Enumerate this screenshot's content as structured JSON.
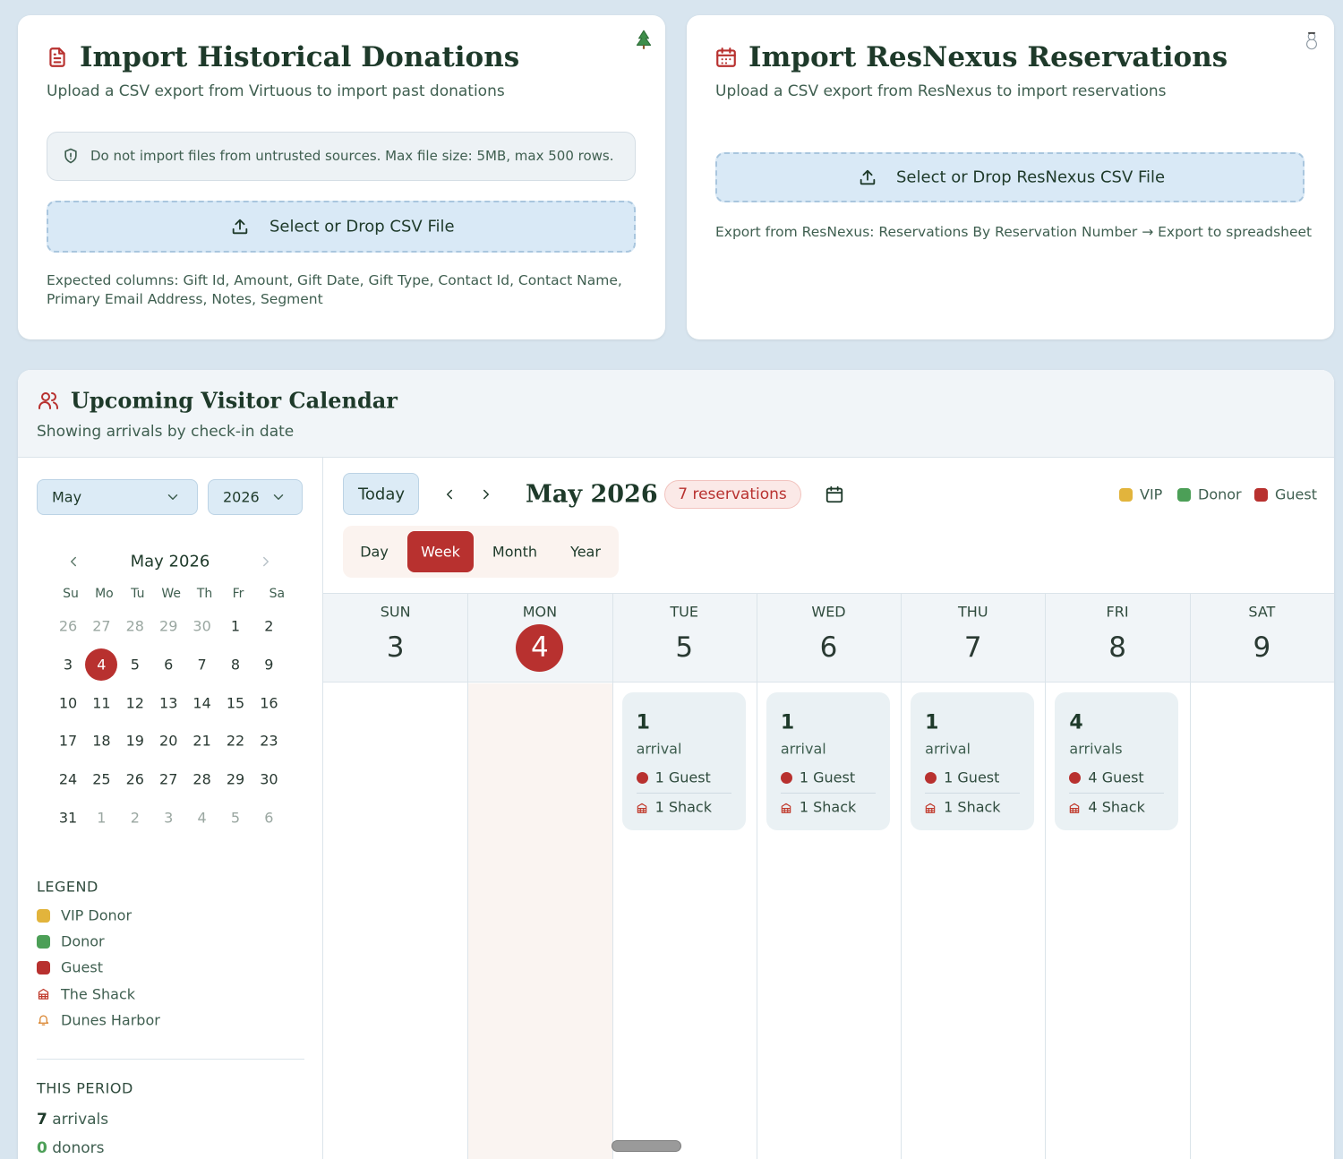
{
  "import_donations": {
    "title": "Import Historical Donations",
    "subtitle": "Upload a CSV export from Virtuous to import past donations",
    "warning": "Do not import files from untrusted sources. Max file size: 5MB, max 500 rows.",
    "button": "Select or Drop CSV File",
    "note": "Expected columns: Gift Id, Amount, Gift Date, Gift Type, Contact Id, Contact Name, Primary Email Address, Notes, Segment"
  },
  "import_reservations": {
    "title": "Import ResNexus Reservations",
    "subtitle": "Upload a CSV export from ResNexus to import reservations",
    "button": "Select or Drop ResNexus CSV File",
    "note": "Export from ResNexus: Reservations By Reservation Number → Export to spreadsheet"
  },
  "calendar": {
    "title": "Upcoming Visitor Calendar",
    "subtitle": "Showing arrivals by check-in date",
    "month_select": "May",
    "year_select": "2026",
    "selected_date": 4,
    "mini": {
      "title": "May 2026",
      "weekdays": [
        "Su",
        "Mo",
        "Tu",
        "We",
        "Th",
        "Fr",
        "Sa"
      ],
      "weeks": [
        [
          26,
          27,
          28,
          29,
          30,
          1,
          2
        ],
        [
          3,
          4,
          5,
          6,
          7,
          8,
          9
        ],
        [
          10,
          11,
          12,
          13,
          14,
          15,
          16
        ],
        [
          17,
          18,
          19,
          20,
          21,
          22,
          23
        ],
        [
          24,
          25,
          26,
          27,
          28,
          29,
          30
        ],
        [
          31,
          1,
          2,
          3,
          4,
          5,
          6
        ]
      ]
    },
    "legend": {
      "title": "LEGEND",
      "items": [
        {
          "label": "VIP Donor",
          "icon": "dot",
          "color": "#e2b43c"
        },
        {
          "label": "Donor",
          "icon": "dot",
          "color": "#4c9f57"
        },
        {
          "label": "Guest",
          "icon": "dot",
          "color": "#b8312f"
        },
        {
          "label": "The Shack",
          "icon": "shack",
          "color": "#c0392b"
        },
        {
          "label": "Dunes Harbor",
          "icon": "bell",
          "color": "#d9822b"
        }
      ]
    },
    "period": {
      "title": "THIS PERIOD",
      "arrivals": 7,
      "arrivals_label": "arrivals",
      "donors": 0,
      "donors_label": "donors"
    },
    "toolbar": {
      "today": "Today",
      "title": "May 2026",
      "reservations": "7 reservations",
      "views": [
        "Day",
        "Week",
        "Month",
        "Year"
      ],
      "active_view": "Week",
      "legend": [
        {
          "label": "VIP",
          "color": "#e2b43c"
        },
        {
          "label": "Donor",
          "color": "#4c9f57"
        },
        {
          "label": "Guest",
          "color": "#b8312f"
        }
      ]
    },
    "week": [
      {
        "name": "SUN",
        "date": 3
      },
      {
        "name": "MON",
        "date": 4
      },
      {
        "name": "TUE",
        "date": 5,
        "arrivals": {
          "count": 1,
          "label": "arrival",
          "guests": "1 Guest",
          "shack": "1 Shack"
        }
      },
      {
        "name": "WED",
        "date": 6,
        "arrivals": {
          "count": 1,
          "label": "arrival",
          "guests": "1 Guest",
          "shack": "1 Shack"
        }
      },
      {
        "name": "THU",
        "date": 7,
        "arrivals": {
          "count": 1,
          "label": "arrival",
          "guests": "1 Guest",
          "shack": "1 Shack"
        }
      },
      {
        "name": "FRI",
        "date": 8,
        "arrivals": {
          "count": 4,
          "label": "arrivals",
          "guests": "4 Guest",
          "shack": "4 Shack"
        }
      },
      {
        "name": "SAT",
        "date": 9
      }
    ]
  }
}
